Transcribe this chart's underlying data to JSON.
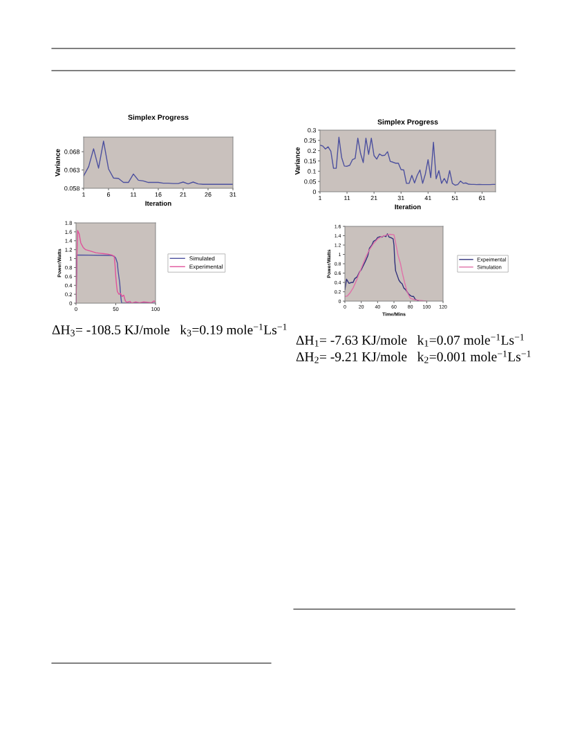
{
  "chart_data": [
    {
      "type": "line",
      "title": "Simplex Progress",
      "xlabel": "Iteration",
      "ylabel": "Variance",
      "xlim": [
        1,
        31
      ],
      "xticks": [
        1,
        6,
        11,
        16,
        21,
        26,
        31
      ],
      "ylim": [
        0.058,
        0.072
      ],
      "yticks": [
        0.058,
        0.063,
        0.068
      ],
      "x": [
        1,
        2,
        3,
        4,
        5,
        6,
        7,
        8,
        9,
        10,
        11,
        12,
        13,
        14,
        15,
        16,
        17,
        18,
        19,
        20,
        21,
        22,
        23,
        24,
        25,
        26,
        27,
        28,
        29,
        30,
        31
      ],
      "series": [
        {
          "color": "#4b4f9e",
          "values": [
            0.0614,
            0.0639,
            0.0688,
            0.0635,
            0.0709,
            0.0633,
            0.0608,
            0.0607,
            0.0596,
            0.0596,
            0.0619,
            0.0602,
            0.06,
            0.0596,
            0.0596,
            0.0596,
            0.0594,
            0.0594,
            0.0593,
            0.0593,
            0.0597,
            0.0592,
            0.0597,
            0.0592,
            0.0591,
            0.0591,
            0.0591,
            0.0591,
            0.0591,
            0.0591,
            0.0591
          ]
        }
      ]
    },
    {
      "type": "line",
      "ylabel": "Power/Watts",
      "xlim": [
        0,
        100
      ],
      "xticks": [
        0,
        50,
        100
      ],
      "ylim": [
        0,
        1.8
      ],
      "yticks": [
        0,
        0.2,
        0.4,
        0.6,
        0.8,
        1,
        1.2,
        1.4,
        1.6,
        1.8
      ],
      "legend": "right",
      "annotations": [
        "ΔH$_{3}$= -108.5 KJ/mole   k$_{3}$=0.19 mole$^{−1}$Ls$^{−1}$"
      ],
      "series": [
        {
          "name": "Simulated",
          "color": "#4b4f9e",
          "x": [
            0,
            1,
            45,
            48,
            50,
            52,
            53,
            55,
            56,
            57,
            57.5,
            60,
            100
          ],
          "values": [
            0,
            1.08,
            1.07,
            1.05,
            1.01,
            0.9,
            0.71,
            0.45,
            0.2,
            0.05,
            0,
            0,
            0
          ]
        },
        {
          "name": "Experimental",
          "color": "#e0509a",
          "x": [
            0,
            1,
            2,
            4,
            6,
            9,
            12,
            18,
            25,
            30,
            35,
            40,
            45,
            48,
            49,
            50,
            51,
            52,
            54,
            56,
            58,
            60,
            62,
            64,
            68,
            70,
            75,
            80,
            85,
            90,
            95,
            98,
            100
          ],
          "values": [
            0,
            1.0,
            1.63,
            1.55,
            1.35,
            1.25,
            1.2,
            1.17,
            1.13,
            1.12,
            1.11,
            1.1,
            1.08,
            1.05,
            0.87,
            0.6,
            0.4,
            0.26,
            0.2,
            0.22,
            0.15,
            0.18,
            0.05,
            0.02,
            0.04,
            0,
            0.03,
            0.01,
            0.03,
            0.02,
            0.01,
            0.05,
            0.03
          ]
        }
      ]
    },
    {
      "type": "line",
      "title": "Simplex Progress",
      "xlabel": "Iteration",
      "ylabel": "Variance",
      "xlim": [
        1,
        66
      ],
      "xticks": [
        1,
        11,
        21,
        31,
        41,
        51,
        61
      ],
      "ylim": [
        0,
        0.3
      ],
      "yticks": [
        0,
        0.05,
        0.1,
        0.15,
        0.2,
        0.25,
        0.3
      ],
      "x": [
        1,
        2,
        3,
        4,
        5,
        6,
        7,
        8,
        9,
        10,
        11,
        12,
        13,
        14,
        15,
        16,
        17,
        18,
        19,
        20,
        21,
        22,
        23,
        24,
        25,
        26,
        27,
        28,
        29,
        30,
        31,
        32,
        33,
        34,
        35,
        36,
        37,
        38,
        39,
        40,
        41,
        42,
        43,
        44,
        45,
        46,
        47,
        48,
        49,
        50,
        51,
        52,
        53,
        54,
        55,
        56,
        57,
        58,
        59,
        60,
        61,
        62,
        63,
        64,
        65,
        66
      ],
      "series": [
        {
          "color": "#4b4f9e",
          "values": [
            0.227,
            0.223,
            0.208,
            0.219,
            0.198,
            0.114,
            0.114,
            0.266,
            0.167,
            0.125,
            0.124,
            0.129,
            0.156,
            0.162,
            0.261,
            0.187,
            0.142,
            0.261,
            0.182,
            0.261,
            0.176,
            0.159,
            0.184,
            0.176,
            0.178,
            0.195,
            0.148,
            0.144,
            0.139,
            0.139,
            0.108,
            0.106,
            0.041,
            0.041,
            0.08,
            0.043,
            0.08,
            0.106,
            0.041,
            0.086,
            0.156,
            0.069,
            0.241,
            0.063,
            0.103,
            0.041,
            0.065,
            0.041,
            0.103,
            0.041,
            0.032,
            0.035,
            0.052,
            0.041,
            0.043,
            0.037,
            0.036,
            0.036,
            0.035,
            0.036,
            0.035,
            0.035,
            0.035,
            0.035,
            0.036,
            0.036
          ]
        }
      ]
    },
    {
      "type": "line",
      "xlabel": "Time/Mins",
      "ylabel": "Power/Watts",
      "xlim": [
        0,
        120
      ],
      "xticks": [
        0,
        20,
        40,
        60,
        80,
        100,
        120
      ],
      "ylim": [
        0,
        1.6
      ],
      "yticks": [
        0,
        0.2,
        0.4,
        0.6,
        0.8,
        1,
        1.2,
        1.4,
        1.6
      ],
      "legend": "right",
      "annotations": [
        "ΔH$_{1}$= -7.63 KJ/mole   k$_{1}$=0.07 mole$^{−1}$Ls$^{−1}$",
        "ΔH$_{2}$= -9.21 KJ/mole   k$_{2}$=0.001 mole$^{−1}$Ls$^{−1}$"
      ],
      "series": [
        {
          "name": "Expeimental",
          "color": "#2e2f7a",
          "x": [
            0,
            2,
            5,
            8,
            10,
            12,
            15,
            18,
            20,
            23,
            25,
            28,
            30,
            33,
            35,
            38,
            40,
            43,
            45,
            48,
            50,
            52,
            54,
            56,
            59,
            60,
            61,
            62,
            64,
            66,
            68,
            70,
            72,
            74,
            76,
            78,
            80,
            82,
            84,
            86,
            88,
            90
          ],
          "values": [
            0.25,
            0.47,
            0.38,
            0.4,
            0.4,
            0.48,
            0.52,
            0.63,
            0.67,
            0.78,
            0.85,
            0.97,
            1.13,
            1.2,
            1.28,
            1.31,
            1.36,
            1.38,
            1.37,
            1.4,
            1.38,
            1.44,
            1.37,
            1.36,
            1.33,
            1.2,
            0.85,
            0.65,
            0.55,
            0.45,
            0.4,
            0.37,
            0.28,
            0.25,
            0.2,
            0.15,
            0.12,
            0.1,
            0.1,
            0.04,
            0.02,
            0
          ]
        },
        {
          "name": "Simulation",
          "color": "#e070a8",
          "x": [
            0,
            3,
            6,
            10,
            15,
            20,
            25,
            30,
            35,
            40,
            45,
            50,
            55,
            60,
            62,
            65,
            68,
            70,
            73,
            76,
            80,
            85,
            90,
            95,
            100
          ],
          "values": [
            0.1,
            0.11,
            0.17,
            0.28,
            0.48,
            0.7,
            0.92,
            1.1,
            1.23,
            1.33,
            1.38,
            1.41,
            1.43,
            1.42,
            1.25,
            0.98,
            0.8,
            0.62,
            0.4,
            0.2,
            0.06,
            0.03,
            0.02,
            0.01,
            0
          ]
        }
      ]
    }
  ]
}
